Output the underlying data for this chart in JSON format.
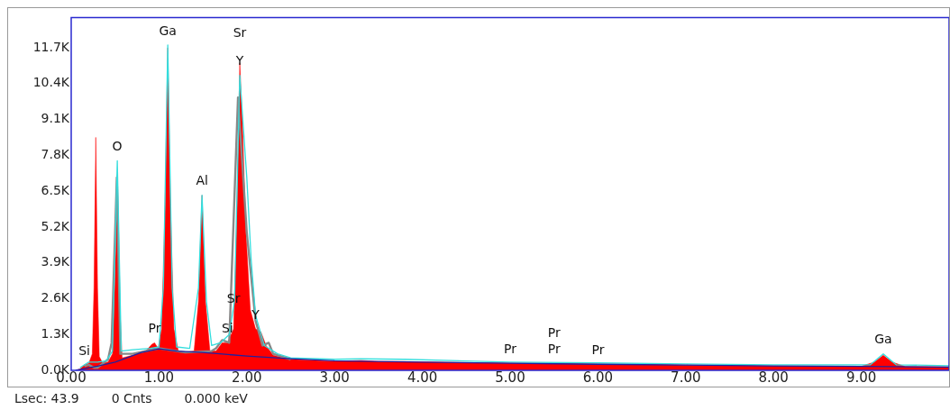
{
  "chart_data": {
    "type": "area",
    "xlim": [
      0,
      10
    ],
    "ylim": [
      0,
      12800
    ],
    "xticks": [
      {
        "value": 0,
        "label": "0.00"
      },
      {
        "value": 1,
        "label": "1.00"
      },
      {
        "value": 2,
        "label": "2.00"
      },
      {
        "value": 3,
        "label": "3.00"
      },
      {
        "value": 4,
        "label": "4.00"
      },
      {
        "value": 5,
        "label": "5.00"
      },
      {
        "value": 6,
        "label": "6.00"
      },
      {
        "value": 7,
        "label": "7.00"
      },
      {
        "value": 8,
        "label": "8.00"
      },
      {
        "value": 9,
        "label": "9.00"
      }
    ],
    "yticks": [
      {
        "value": 0,
        "label": "0.0K"
      },
      {
        "value": 1300,
        "label": "1.3K"
      },
      {
        "value": 2600,
        "label": "2.6K"
      },
      {
        "value": 3900,
        "label": "3.9K"
      },
      {
        "value": 5200,
        "label": "5.2K"
      },
      {
        "value": 6500,
        "label": "6.5K"
      },
      {
        "value": 7800,
        "label": "7.8K"
      },
      {
        "value": 9100,
        "label": "9.1K"
      },
      {
        "value": 10400,
        "label": "10.4K"
      },
      {
        "value": 11700,
        "label": "11.7K"
      }
    ],
    "grid": false,
    "legend": false,
    "marker": "none",
    "line_style": "solid",
    "series": [
      {
        "color": "#ff0000",
        "x": [
          0.05,
          0.1,
          0.15,
          0.2,
          0.24,
          0.26,
          0.28,
          0.3,
          0.32,
          0.36,
          0.42,
          0.47,
          0.5,
          0.525,
          0.55,
          0.58,
          0.7,
          0.85,
          0.92,
          0.95,
          0.99,
          1.03,
          1.07,
          1.1,
          1.13,
          1.17,
          1.22,
          1.3,
          1.4,
          1.45,
          1.49,
          1.53,
          1.58,
          1.65,
          1.72,
          1.78,
          1.85,
          1.89,
          1.92,
          1.95,
          1.99,
          2.04,
          2.1,
          2.16,
          2.22,
          2.3,
          2.5,
          3.0,
          3.3,
          3.5,
          3.8,
          4.5,
          5.0,
          5.5,
          6.0,
          6.5,
          7.0,
          8.0,
          9.0,
          9.15,
          9.25,
          9.35,
          9.5,
          10
        ],
        "values": [
          0,
          50,
          200,
          250,
          600,
          3000,
          8450,
          3000,
          500,
          250,
          300,
          600,
          3500,
          7100,
          2500,
          450,
          550,
          700,
          950,
          1000,
          800,
          1500,
          6000,
          11700,
          6000,
          1500,
          700,
          650,
          700,
          2500,
          6350,
          2500,
          700,
          700,
          1000,
          1000,
          1500,
          6000,
          11150,
          9000,
          5000,
          2200,
          1500,
          1400,
          900,
          550,
          400,
          330,
          360,
          320,
          320,
          280,
          260,
          250,
          230,
          220,
          190,
          160,
          150,
          300,
          550,
          300,
          140,
          130
        ]
      },
      {
        "type": "line",
        "color": "#888888",
        "x": [
          0.15,
          0.2,
          0.26,
          0.3,
          0.42,
          0.46,
          0.52,
          0.56,
          0.7,
          1.0,
          1.3,
          1.6,
          1.65,
          1.72,
          1.8,
          1.9,
          2.0,
          2.1,
          2.18,
          2.25,
          2.3,
          2.5
        ],
        "values": [
          150,
          200,
          100,
          100,
          400,
          1000,
          7000,
          600,
          600,
          800,
          650,
          700,
          800,
          1100,
          1000,
          9900,
          5000,
          1800,
          900,
          1000,
          600,
          400
        ]
      },
      {
        "type": "line",
        "color": "#33dddd",
        "x": [
          0.1,
          0.2,
          0.3,
          0.4,
          0.47,
          0.525,
          0.57,
          0.7,
          0.9,
          1.0,
          1.05,
          1.1,
          1.15,
          1.2,
          1.35,
          1.45,
          1.49,
          1.54,
          1.6,
          1.7,
          1.8,
          1.86,
          1.92,
          2.0,
          2.05,
          2.1,
          2.2,
          2.35,
          2.5,
          3.0,
          3.3,
          3.8,
          5.0,
          6.0,
          7.0,
          8.0,
          9.1,
          9.25,
          9.4,
          10
        ],
        "values": [
          100,
          300,
          300,
          350,
          700,
          7600,
          700,
          750,
          800,
          850,
          3000,
          11800,
          3000,
          850,
          800,
          3000,
          6350,
          2500,
          900,
          1000,
          1300,
          2500,
          10700,
          7000,
          4000,
          2000,
          900,
          600,
          450,
          400,
          420,
          400,
          300,
          270,
          230,
          200,
          200,
          600,
          200,
          170
        ]
      },
      {
        "type": "line",
        "color": "#2020a0",
        "x": [
          0.05,
          0.3,
          0.5,
          0.8,
          1.0,
          1.2,
          1.5,
          2.0,
          2.5,
          3.0,
          4.0,
          5.0,
          6.0,
          7.0,
          8.0,
          9.0,
          10
        ],
        "values": [
          0,
          150,
          300,
          650,
          780,
          700,
          650,
          520,
          420,
          350,
          300,
          260,
          220,
          190,
          160,
          140,
          120
        ]
      }
    ],
    "annotations": [
      {
        "text": "Si",
        "x": 0.15,
        "y": 200
      },
      {
        "text": "O",
        "x": 0.525,
        "y": 7600
      },
      {
        "text": "Pr",
        "x": 0.95,
        "y": 1000
      },
      {
        "text": "Ga",
        "x": 1.1,
        "y": 11800
      },
      {
        "text": "Al",
        "x": 1.49,
        "y": 6350
      },
      {
        "text": "Y",
        "x": 1.92,
        "y": 10700
      },
      {
        "text": "Sr",
        "x": 1.92,
        "y": 11150
      },
      {
        "text": "Si",
        "x": 1.78,
        "y": 1000
      },
      {
        "text": "Sr",
        "x": 1.85,
        "y": 1500
      },
      {
        "text": "Y",
        "x": 2.1,
        "y": 1500
      },
      {
        "text": "Pr",
        "x": 5.0,
        "y": 260
      },
      {
        "text": "Pr",
        "x": 5.5,
        "y": 250
      },
      {
        "text": "Pr",
        "x": 5.5,
        "y": 250
      },
      {
        "text": "Pr",
        "x": 6.0,
        "y": 230
      },
      {
        "text": "Ga",
        "x": 9.25,
        "y": 600
      },
      "Lsec: 43.9",
      "0 Cnts",
      "0.000 keV"
    ]
  }
}
